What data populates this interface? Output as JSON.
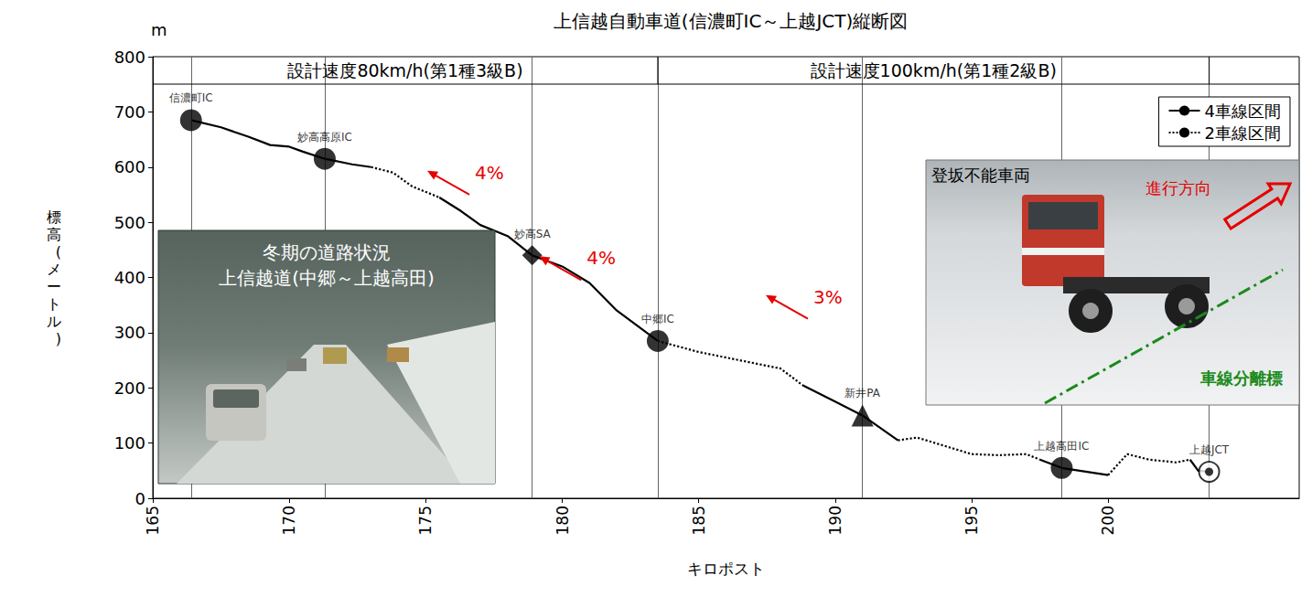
{
  "chart_data": {
    "type": "line",
    "title": "上信越自動車道(信濃町IC～上越JCT)縦断図",
    "xlabel": "キロポスト",
    "ylabel": "標高(メートル)",
    "y_unit": "m",
    "xlim": [
      165,
      207
    ],
    "xticks": [
      165,
      170,
      175,
      180,
      185,
      190,
      195,
      200
    ],
    "ylim": [
      0,
      800
    ],
    "yticks": [
      0,
      100,
      200,
      300,
      400,
      500,
      600,
      700,
      800
    ],
    "grid": false,
    "legend": "upper right",
    "x": [
      166.4,
      167.5,
      168.5,
      169.3,
      170.0,
      170.5,
      171.3,
      172.3,
      173.0,
      173.8,
      174.5,
      175.5,
      176.3,
      177.0,
      178.0,
      178.9,
      180.0,
      181.0,
      182.0,
      183.5,
      185.0,
      186.5,
      188.0,
      188.8,
      190.0,
      191.0,
      192.3,
      193.0,
      194.0,
      195.0,
      196.0,
      197.0,
      197.5,
      198.3,
      200.0,
      200.7,
      201.5,
      202.5,
      203.0,
      203.3,
      203.7
    ],
    "series": [
      {
        "name": "4車線区間",
        "color": "#000000",
        "line_style": "solid",
        "values": [
          685,
          672,
          655,
          640,
          637,
          628,
          615,
          605,
          600,
          null,
          null,
          545,
          520,
          495,
          475,
          440,
          420,
          390,
          340,
          285,
          null,
          null,
          null,
          205,
          175,
          150,
          105,
          null,
          null,
          null,
          null,
          null,
          70,
          55,
          42,
          null,
          null,
          null,
          70,
          50,
          48
        ]
      },
      {
        "name": "2車線区間",
        "color": "#000000",
        "line_style": "dotted",
        "values": [
          null,
          null,
          null,
          null,
          null,
          null,
          null,
          null,
          600,
          590,
          565,
          545,
          null,
          null,
          null,
          null,
          null,
          null,
          null,
          285,
          265,
          250,
          235,
          205,
          null,
          null,
          105,
          110,
          95,
          80,
          78,
          80,
          70,
          null,
          42,
          80,
          70,
          65,
          70,
          null,
          null
        ]
      }
    ],
    "facilities": [
      {
        "name": "信濃町IC",
        "x": 166.4,
        "y": 685,
        "marker": "circle"
      },
      {
        "name": "妙高高原IC",
        "x": 171.3,
        "y": 615,
        "marker": "circle"
      },
      {
        "name": "妙高SA",
        "x": 178.9,
        "y": 440,
        "marker": "diamond"
      },
      {
        "name": "中郷IC",
        "x": 183.5,
        "y": 285,
        "marker": "circle"
      },
      {
        "name": "新井PA",
        "x": 191.0,
        "y": 150,
        "marker": "triangle"
      },
      {
        "name": "上越高田IC",
        "x": 198.3,
        "y": 55,
        "marker": "circle"
      },
      {
        "name": "上越JCT",
        "x": 203.7,
        "y": 48,
        "marker": "double_circle"
      }
    ],
    "sections": [
      {
        "text": "設計速度80km/h(第1種3級B)",
        "from": 165,
        "to": 183.5
      },
      {
        "text": "設計速度100km/h(第1種2級B)",
        "from": 183.5,
        "to": 203.7
      }
    ],
    "grades": [
      {
        "text": "4%",
        "x": 176.8,
        "y": 590
      },
      {
        "text": "4%",
        "x": 180.9,
        "y": 435
      },
      {
        "text": "3%",
        "x": 189.2,
        "y": 365
      }
    ],
    "photos": [
      {
        "title": "冬期の道路状況",
        "subtitle": "上信越道(中郷～上越高田)"
      },
      {
        "title": "登坂不能車両",
        "direction_label": "進行方向",
        "marker_label": "車線分離標"
      }
    ]
  }
}
